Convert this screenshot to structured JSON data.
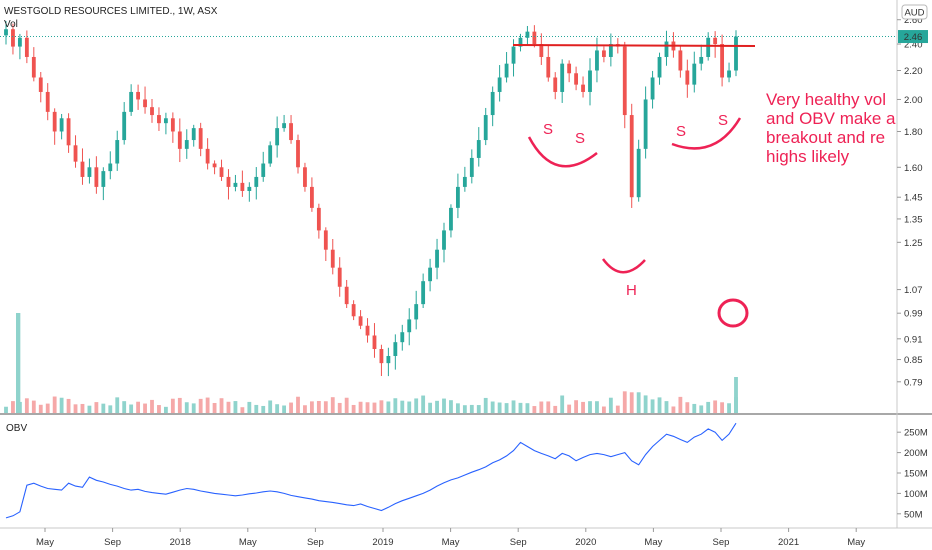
{
  "header": {
    "symbol_title": "WESTGOLD RESOURCES LIMITED., 1W, ASX",
    "volume_label": "Vol",
    "currency": "AUD",
    "last_price_label": "2.46"
  },
  "obv_panel": {
    "label": "OBV"
  },
  "annotations": {
    "note_lines": [
      "Very healthy vol",
      "and OBV make a",
      "breakout and re",
      "highs likely"
    ],
    "pattern_labels": [
      "S",
      "S",
      "H",
      "S",
      "S"
    ]
  },
  "colors": {
    "up": "#26a69a",
    "down": "#ef5350",
    "vol_up": "#8fd3cc",
    "vol_down": "#f5a8a8",
    "obv_line": "#2962ff",
    "annotation": "#ee2255"
  },
  "chart_data": [
    {
      "type": "candlestick",
      "title": "WESTGOLD RESOURCES LIMITED., 1W, ASX",
      "scale": "log",
      "currency": "AUD",
      "ylim": [
        0.72,
        2.72
      ],
      "price_ticks": [
        "2.60",
        "2.40",
        "2.20",
        "2.00",
        "1.80",
        "1.60",
        "1.45",
        "1.35",
        "1.25",
        "1.07",
        "0.99",
        "0.91",
        "0.85",
        "0.79"
      ],
      "x_ticks": [
        "May",
        "Sep",
        "2018",
        "May",
        "Sep",
        "2019",
        "May",
        "Sep",
        "2020",
        "May",
        "Sep",
        "2021",
        "May"
      ],
      "last_price": 2.46,
      "resistance_level": 2.5,
      "closes": [
        2.52,
        2.38,
        2.45,
        2.3,
        2.15,
        2.05,
        1.92,
        1.8,
        1.88,
        1.72,
        1.63,
        1.55,
        1.6,
        1.5,
        1.58,
        1.62,
        1.75,
        1.92,
        2.05,
        2.0,
        1.95,
        1.9,
        1.85,
        1.88,
        1.8,
        1.7,
        1.75,
        1.82,
        1.7,
        1.62,
        1.6,
        1.55,
        1.5,
        1.52,
        1.48,
        1.5,
        1.55,
        1.62,
        1.72,
        1.82,
        1.85,
        1.75,
        1.6,
        1.5,
        1.4,
        1.3,
        1.22,
        1.15,
        1.08,
        1.02,
        0.98,
        0.95,
        0.92,
        0.88,
        0.84,
        0.86,
        0.9,
        0.93,
        0.97,
        1.02,
        1.1,
        1.15,
        1.22,
        1.3,
        1.4,
        1.5,
        1.55,
        1.65,
        1.75,
        1.9,
        2.05,
        2.15,
        2.25,
        2.38,
        2.45,
        2.5,
        2.4,
        2.3,
        2.15,
        2.05,
        2.25,
        2.18,
        2.1,
        2.05,
        2.2,
        2.35,
        2.3,
        2.4,
        2.38,
        1.9,
        1.45,
        1.7,
        2.0,
        2.15,
        2.3,
        2.42,
        2.35,
        2.2,
        2.1,
        2.25,
        2.3,
        2.45,
        2.4,
        2.15,
        2.2,
        2.46
      ],
      "volume_peaks": [
        "2017-04 spike (largest)",
        "2020-09 spike"
      ]
    },
    {
      "type": "line",
      "title": "OBV",
      "y_ticks": [
        "250M",
        "200M",
        "150M",
        "100M",
        "50M"
      ],
      "ylim": [
        25,
        275
      ],
      "values": [
        40,
        45,
        55,
        120,
        125,
        118,
        112,
        110,
        108,
        125,
        118,
        115,
        140,
        132,
        128,
        122,
        118,
        112,
        108,
        110,
        105,
        102,
        100,
        98,
        103,
        108,
        112,
        110,
        106,
        103,
        100,
        98,
        96,
        94,
        96,
        99,
        101,
        104,
        106,
        104,
        100,
        95,
        92,
        89,
        86,
        82,
        80,
        78,
        75,
        72,
        70,
        74,
        68,
        63,
        58,
        66,
        75,
        82,
        88,
        94,
        100,
        108,
        118,
        126,
        133,
        138,
        145,
        152,
        158,
        165,
        175,
        182,
        192,
        205,
        225,
        215,
        205,
        198,
        192,
        185,
        198,
        192,
        180,
        188,
        195,
        198,
        195,
        190,
        195,
        200,
        180,
        170,
        195,
        215,
        230,
        245,
        240,
        232,
        225,
        238,
        245,
        258,
        250,
        230,
        245,
        272
      ]
    }
  ]
}
